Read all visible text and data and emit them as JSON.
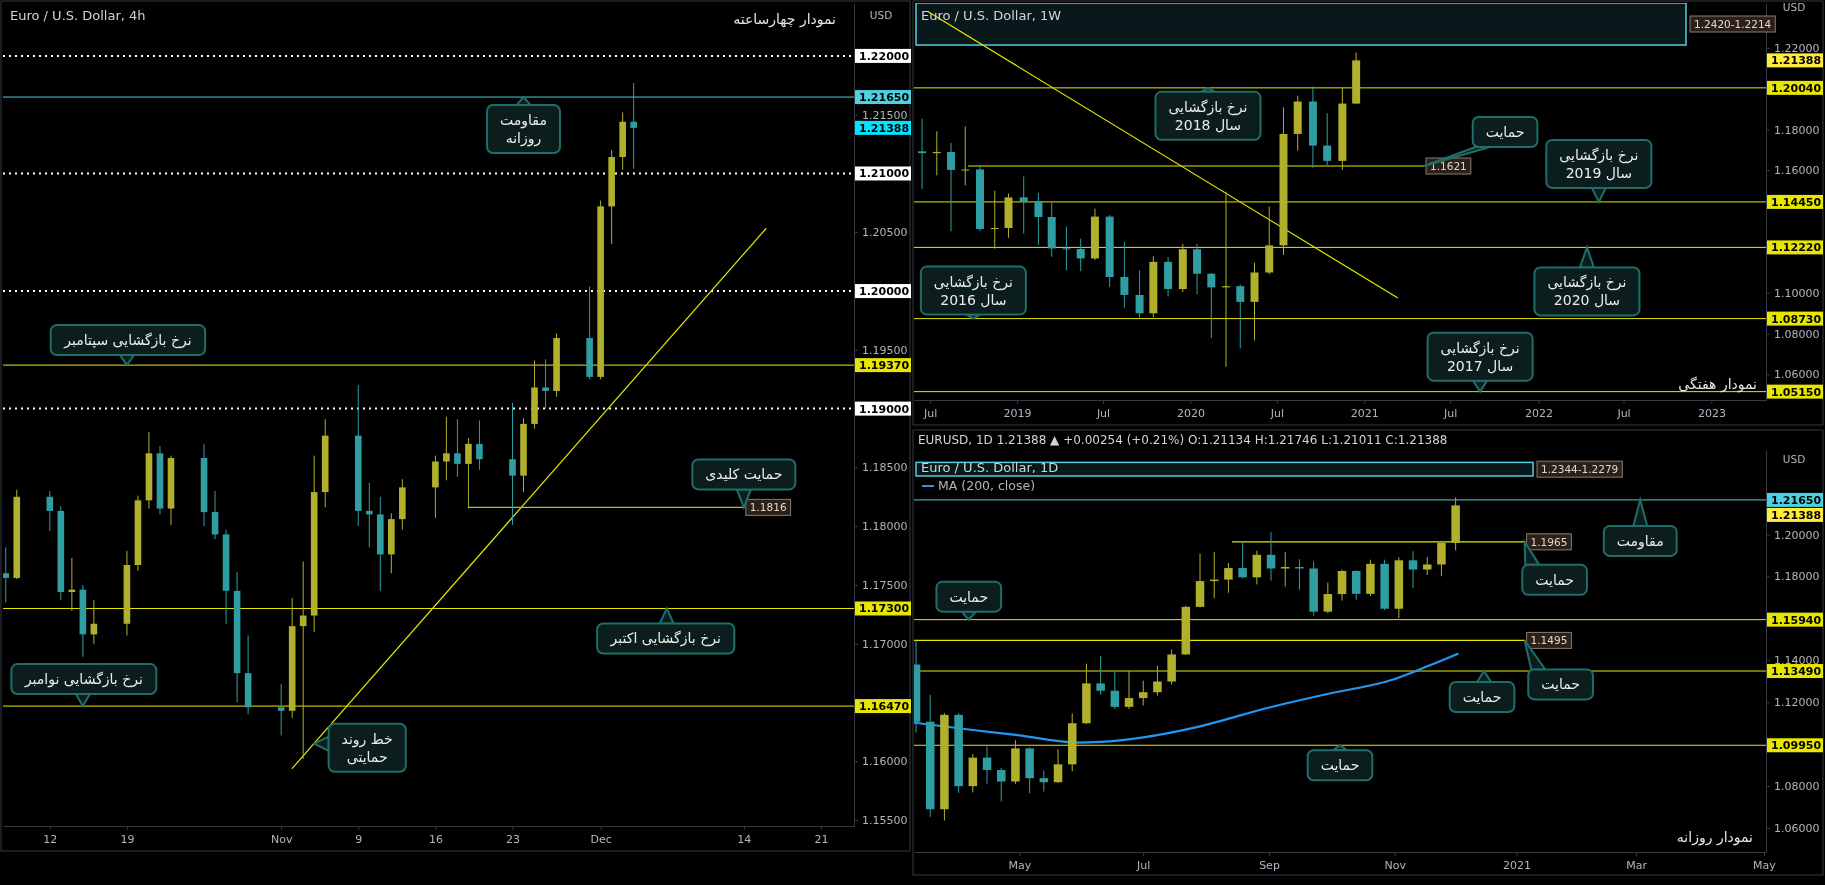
{
  "chart_data": [
    {
      "type": "candlestick",
      "title": "Euro / U.S. Dollar, 4h",
      "subtitle": "نمودار چهارساعته",
      "ylabel": "USD",
      "xlim": [
        "2020-10-07T18:00",
        "2020-12-24"
      ],
      "ylim": [
        1.1545,
        1.2245
      ],
      "xticks": [
        {
          "value": "2020-10-12",
          "label": "12"
        },
        {
          "value": "2020-10-19",
          "label": "19"
        },
        {
          "value": "2020-11-02",
          "label": "Nov"
        },
        {
          "value": "2020-11-09",
          "label": "9"
        },
        {
          "value": "2020-11-16",
          "label": "16"
        },
        {
          "value": "2020-11-23",
          "label": "23"
        },
        {
          "value": "2020-12-01",
          "label": "Dec"
        },
        {
          "value": "2020-12-14",
          "label": "14"
        },
        {
          "value": "2020-12-21",
          "label": "21"
        }
      ],
      "yticks": [
        {
          "value": 1.155,
          "label": "1.15500"
        },
        {
          "value": 1.16,
          "label": "1.16000"
        },
        {
          "value": 1.17,
          "label": "1.17000"
        },
        {
          "value": 1.175,
          "label": "1.17500"
        },
        {
          "value": 1.18,
          "label": "1.18000"
        },
        {
          "value": 1.185,
          "label": "1.18500"
        },
        {
          "value": 1.195,
          "label": "1.19500"
        },
        {
          "value": 1.205,
          "label": "1.20500"
        },
        {
          "value": 1.215,
          "label": "1.21500"
        }
      ],
      "x": [
        "2020-10-08",
        "2020-10-09",
        "2020-10-12",
        "2020-10-13",
        "2020-10-14",
        "2020-10-15",
        "2020-10-16",
        "2020-10-19",
        "2020-10-20",
        "2020-10-21",
        "2020-10-22",
        "2020-10-23",
        "2020-10-26",
        "2020-10-27",
        "2020-10-28",
        "2020-10-29",
        "2020-10-30",
        "2020-11-02",
        "2020-11-03",
        "2020-11-04",
        "2020-11-05",
        "2020-11-06",
        "2020-11-09",
        "2020-11-10",
        "2020-11-11",
        "2020-11-12",
        "2020-11-13",
        "2020-11-16",
        "2020-11-17",
        "2020-11-18",
        "2020-11-19",
        "2020-11-20",
        "2020-11-23",
        "2020-11-24",
        "2020-11-25",
        "2020-11-26",
        "2020-11-27",
        "2020-11-30",
        "2020-12-01",
        "2020-12-02",
        "2020-12-03",
        "2020-12-04"
      ],
      "ohlc": [
        [
          1.176,
          1.1782,
          1.1735,
          1.1756
        ],
        [
          1.1756,
          1.1831,
          1.1755,
          1.1825
        ],
        [
          1.1825,
          1.183,
          1.1796,
          1.1813
        ],
        [
          1.1813,
          1.1817,
          1.1737,
          1.1744
        ],
        [
          1.1744,
          1.1773,
          1.1728,
          1.1746
        ],
        [
          1.1746,
          1.175,
          1.1689,
          1.1708
        ],
        [
          1.1708,
          1.1737,
          1.17,
          1.1717
        ],
        [
          1.1717,
          1.1779,
          1.1707,
          1.1767
        ],
        [
          1.1767,
          1.1826,
          1.1762,
          1.1822
        ],
        [
          1.1822,
          1.188,
          1.1815,
          1.1862
        ],
        [
          1.1862,
          1.1868,
          1.181,
          1.1815
        ],
        [
          1.1815,
          1.186,
          1.1801,
          1.1858
        ],
        [
          1.1858,
          1.187,
          1.18,
          1.1812
        ],
        [
          1.1812,
          1.183,
          1.1789,
          1.1793
        ],
        [
          1.1793,
          1.1797,
          1.1717,
          1.1745
        ],
        [
          1.1745,
          1.1761,
          1.165,
          1.1675
        ],
        [
          1.1675,
          1.1707,
          1.164,
          1.1646
        ],
        [
          1.1646,
          1.1666,
          1.1622,
          1.1643
        ],
        [
          1.1643,
          1.1739,
          1.1637,
          1.1715
        ],
        [
          1.1715,
          1.177,
          1.1602,
          1.1724
        ],
        [
          1.1724,
          1.186,
          1.171,
          1.1829
        ],
        [
          1.1829,
          1.1891,
          1.1816,
          1.1877
        ],
        [
          1.1877,
          1.192,
          1.18,
          1.1813
        ],
        [
          1.1813,
          1.1837,
          1.1782,
          1.181
        ],
        [
          1.181,
          1.1825,
          1.1745,
          1.1776
        ],
        [
          1.1776,
          1.1811,
          1.176,
          1.1806
        ],
        [
          1.1806,
          1.184,
          1.1797,
          1.1833
        ],
        [
          1.1833,
          1.186,
          1.1807,
          1.1855
        ],
        [
          1.1855,
          1.1893,
          1.1839,
          1.1862
        ],
        [
          1.1862,
          1.1891,
          1.1842,
          1.1853
        ],
        [
          1.1853,
          1.1875,
          1.1815,
          1.187
        ],
        [
          1.187,
          1.189,
          1.1848,
          1.1857
        ],
        [
          1.1857,
          1.1905,
          1.1801,
          1.1843
        ],
        [
          1.1843,
          1.1892,
          1.1829,
          1.1887
        ],
        [
          1.1887,
          1.1941,
          1.1883,
          1.1918
        ],
        [
          1.1918,
          1.1942,
          1.19,
          1.1915
        ],
        [
          1.1915,
          1.1964,
          1.191,
          1.196
        ],
        [
          1.196,
          1.2004,
          1.1925,
          1.1927
        ],
        [
          1.1927,
          1.2077,
          1.1925,
          1.2072
        ],
        [
          1.2072,
          1.212,
          1.204,
          1.2114
        ],
        [
          1.2114,
          1.2152,
          1.2103,
          1.2144
        ],
        [
          1.2144,
          1.2177,
          1.2104,
          1.21388
        ]
      ],
      "colors": [
        "#2f9ea2",
        "#b0b02c",
        "#2f9ea2",
        "#2f9ea2",
        "#b0b02c",
        "#2f9ea2",
        "#b0b02c",
        "#b0b02c",
        "#b0b02c",
        "#b0b02c",
        "#2f9ea2",
        "#b0b02c",
        "#2f9ea2",
        "#2f9ea2",
        "#2f9ea2",
        "#2f9ea2",
        "#2f9ea2",
        "#2f9ea2",
        "#b0b02c",
        "#b0b02c",
        "#b0b02c",
        "#b0b02c",
        "#2f9ea2",
        "#2f9ea2",
        "#2f9ea2",
        "#b0b02c",
        "#b0b02c",
        "#b0b02c",
        "#b0b02c",
        "#2f9ea2",
        "#b0b02c",
        "#2f9ea2",
        "#2f9ea2",
        "#b0b02c",
        "#b0b02c",
        "#2f9ea2",
        "#b0b02c",
        "#2f9ea2",
        "#b0b02c",
        "#b0b02c",
        "#b0b02c",
        "#2f9ea2"
      ],
      "series": [
        {
          "type": "line",
          "x": [
            "2020-11-03",
            "2020-12-16"
          ],
          "values": [
            1.1594,
            1.2053
          ],
          "color": "#e6e600"
        },
        {
          "type": "line",
          "x": [
            "2020-11-19",
            "2020-12-14"
          ],
          "values": [
            1.1816,
            1.1816
          ],
          "color": "#b8b84a",
          "value_labels": [
            null,
            "1.1816"
          ]
        }
      ],
      "ref_lines": [
        {
          "axis": "y",
          "value": 1.22,
          "label": "1.22000",
          "color": "#ffffff",
          "line_style": "dotted"
        },
        {
          "axis": "y",
          "value": 1.2165,
          "label": "1.21650",
          "color": "#4dd0e1"
        },
        {
          "axis": "y",
          "value": 1.21,
          "label": "1.21000",
          "color": "#ffffff",
          "line_style": "dotted"
        },
        {
          "axis": "y",
          "value": 1.2,
          "label": "1.20000",
          "color": "#ffffff",
          "line_style": "dotted"
        },
        {
          "axis": "y",
          "value": 1.1937,
          "label": "1.19370",
          "color": "#e6e600"
        },
        {
          "axis": "y",
          "value": 1.19,
          "label": "1.19000",
          "color": "#ffffff",
          "line_style": "dotted"
        },
        {
          "axis": "y",
          "value": 1.173,
          "label": "1.17300",
          "color": "#e6e600"
        },
        {
          "axis": "y",
          "value": 1.1647,
          "label": "1.16470",
          "color": "#e6e600"
        }
      ],
      "annotations": [
        "1.21388",
        {
          "text": "مقاومت\nروزانه",
          "x": "2020-11-24",
          "y": 1.2165
        },
        {
          "text": "نرخ بازگشایی سپتامبر",
          "x": "2020-10-19",
          "y": 1.1937
        },
        {
          "text": "حمایت کلیدی",
          "x": "2020-12-14",
          "y": 1.1816
        },
        {
          "text": "نرخ بازگشایی اکتبر",
          "x": "2020-12-07",
          "y": 1.173
        },
        {
          "text": "نرخ بازگشایی نوامبر",
          "x": "2020-10-15",
          "y": 1.1647
        },
        {
          "text": "خط روند\nحمایتی",
          "x": "2020-11-05",
          "y": 1.1615
        }
      ]
    },
    {
      "type": "candlestick",
      "title": "Euro / U.S. Dollar, 1W",
      "subtitle": "نمودار هفتگی",
      "ylabel": "USD",
      "xlim": [
        "2018-05-29",
        "2023-04-27"
      ],
      "ylim": [
        1.0474,
        1.242
      ],
      "xticks": [
        {
          "value": "2018-07-02",
          "label": "Jul"
        },
        {
          "value": "2019-01-01",
          "label": "2019"
        },
        {
          "value": "2019-07-01",
          "label": "Jul"
        },
        {
          "value": "2020-01-01",
          "label": "2020"
        },
        {
          "value": "2020-07-01",
          "label": "Jul"
        },
        {
          "value": "2021-01-01",
          "label": "2021"
        },
        {
          "value": "2021-07-01",
          "label": "Jul"
        },
        {
          "value": "2022-01-03",
          "label": "2022"
        },
        {
          "value": "2022-07-01",
          "label": "Jul"
        },
        {
          "value": "2023-01-02",
          "label": "2023"
        }
      ],
      "yticks": [
        {
          "value": 1.06,
          "label": "1.06000"
        },
        {
          "value": 1.08,
          "label": "1.08000"
        },
        {
          "value": 1.1,
          "label": "1.10000"
        },
        {
          "value": 1.16,
          "label": "1.16000"
        },
        {
          "value": 1.18,
          "label": "1.18000"
        },
        {
          "value": 1.22,
          "label": "1.22000"
        }
      ],
      "x": [
        "2018-06-15",
        "2018-07-16",
        "2018-08-15",
        "2018-09-14",
        "2018-10-15",
        "2018-11-15",
        "2018-12-14",
        "2019-01-15",
        "2019-02-15",
        "2019-03-15",
        "2019-04-15",
        "2019-05-15",
        "2019-06-14",
        "2019-07-15",
        "2019-08-15",
        "2019-09-16",
        "2019-10-15",
        "2019-11-15",
        "2019-12-16",
        "2020-01-15",
        "2020-02-14",
        "2020-03-16",
        "2020-04-15",
        "2020-05-15",
        "2020-06-15",
        "2020-07-15",
        "2020-08-14",
        "2020-09-15",
        "2020-10-15",
        "2020-11-16",
        "2020-12-15"
      ],
      "ohlc": [
        [
          1.1693,
          1.1853,
          1.1509,
          1.1684
        ],
        [
          1.1684,
          1.1791,
          1.1575,
          1.169
        ],
        [
          1.169,
          1.1734,
          1.1301,
          1.1602
        ],
        [
          1.1602,
          1.1815,
          1.1526,
          1.1604
        ],
        [
          1.1604,
          1.1625,
          1.1302,
          1.1312
        ],
        [
          1.1312,
          1.15,
          1.1216,
          1.1317
        ],
        [
          1.1317,
          1.1486,
          1.1269,
          1.1467
        ],
        [
          1.1467,
          1.157,
          1.1289,
          1.1448
        ],
        [
          1.1448,
          1.1489,
          1.1234,
          1.1371
        ],
        [
          1.1371,
          1.1448,
          1.1176,
          1.1217
        ],
        [
          1.1217,
          1.1324,
          1.111,
          1.1214
        ],
        [
          1.1214,
          1.1265,
          1.1105,
          1.1168
        ],
        [
          1.1168,
          1.1412,
          1.116,
          1.1373
        ],
        [
          1.1373,
          1.138,
          1.1028,
          1.1077
        ],
        [
          1.1077,
          1.1249,
          1.0926,
          1.0989
        ],
        [
          1.0989,
          1.1109,
          1.0879,
          1.0899
        ],
        [
          1.0899,
          1.1179,
          1.0879,
          1.1151
        ],
        [
          1.1151,
          1.1175,
          1.0981,
          1.1018
        ],
        [
          1.1018,
          1.1239,
          1.1003,
          1.1213
        ],
        [
          1.1213,
          1.1239,
          1.0992,
          1.1093
        ],
        [
          1.1093,
          1.1096,
          1.0778,
          1.1026
        ],
        [
          1.1026,
          1.1495,
          1.0636,
          1.1032
        ],
        [
          1.1032,
          1.104,
          1.0727,
          1.0955
        ],
        [
          1.0955,
          1.1147,
          1.0766,
          1.1099
        ],
        [
          1.1099,
          1.1422,
          1.1091,
          1.1232
        ],
        [
          1.1232,
          1.1909,
          1.1185,
          1.1778
        ],
        [
          1.1778,
          1.1966,
          1.1696,
          1.1937
        ],
        [
          1.1937,
          1.2011,
          1.1612,
          1.1721
        ],
        [
          1.1721,
          1.188,
          1.1622,
          1.1646
        ],
        [
          1.1646,
          1.2004,
          1.1602,
          1.1927
        ],
        [
          1.1927,
          1.2177,
          1.1925,
          1.21388
        ]
      ],
      "colors": [
        "#2f9ea2",
        "#b0b02c",
        "#2f9ea2",
        "#b0b02c",
        "#2f9ea2",
        "#b0b02c",
        "#b0b02c",
        "#2f9ea2",
        "#2f9ea2",
        "#2f9ea2",
        "#2f9ea2",
        "#2f9ea2",
        "#b0b02c",
        "#2f9ea2",
        "#2f9ea2",
        "#2f9ea2",
        "#b0b02c",
        "#2f9ea2",
        "#b0b02c",
        "#2f9ea2",
        "#2f9ea2",
        "#b0b02c",
        "#2f9ea2",
        "#b0b02c",
        "#b0b02c",
        "#b0b02c",
        "#b0b02c",
        "#2f9ea2",
        "#2f9ea2",
        "#b0b02c",
        "#b0b02c"
      ],
      "series": [
        {
          "type": "line",
          "x": [
            "2018-06-27",
            "2021-03-12"
          ],
          "values": [
            1.2378,
            1.0975
          ],
          "color": "#e6e600"
        },
        {
          "type": "line",
          "x": [
            "2018-09-21",
            "2021-05-07"
          ],
          "values": [
            1.1621,
            1.1621
          ],
          "color": "#e6e600",
          "value_labels": [
            null,
            "1.1621"
          ]
        }
      ],
      "bands": [
        {
          "axis": "y",
          "from": 1.2214,
          "to": 1.242,
          "label": "1.2420-1.2214",
          "color": "#4dd0e1"
        }
      ],
      "ref_lines": [
        {
          "axis": "y",
          "value": 1.2004,
          "label": "1.20040",
          "color": "#e6e600"
        },
        {
          "axis": "y",
          "value": 1.1445,
          "label": "1.14450",
          "color": "#e6e600"
        },
        {
          "axis": "y",
          "value": 1.1222,
          "label": "1.12220",
          "color": "#e6e600"
        },
        {
          "axis": "y",
          "value": 1.0873,
          "label": "1.08730",
          "color": "#e6e600"
        },
        {
          "axis": "y",
          "value": 1.0515,
          "label": "1.05150",
          "color": "#e6e600"
        }
      ],
      "annotations": [
        "1.21388",
        {
          "text": "نرخ بازگشایی\nسال 2018",
          "x": "2020-02-07",
          "y": 1.2004
        },
        {
          "text": "حمایت",
          "x": "2021-05-07",
          "y": 1.1621
        },
        {
          "text": "نرخ بازگشایی\nسال 2019",
          "x": "2022-05-10",
          "y": 1.1445
        },
        {
          "text": "نرخ بازگشایی\nسال 2020",
          "x": "2022-04-15",
          "y": 1.1222
        },
        {
          "text": "نرخ بازگشایی\nسال 2016",
          "x": "2018-10-01",
          "y": 1.0873
        },
        {
          "text": "نرخ بازگشایی\nسال 2017",
          "x": "2021-09-02",
          "y": 1.0515
        }
      ]
    },
    {
      "type": "candlestick",
      "title": "Euro / U.S. Dollar, 1D",
      "subtitle": "نمودار روزانه",
      "ylabel": "USD",
      "legend": "top left",
      "xlim": [
        "2020-03-10",
        "2021-05-04"
      ],
      "ylim": [
        1.0486,
        1.2403
      ],
      "xticks": [
        {
          "value": "2020-05-01",
          "label": "May"
        },
        {
          "value": "2020-07-01",
          "label": "Jul"
        },
        {
          "value": "2020-09-01",
          "label": "Sep"
        },
        {
          "value": "2020-11-02",
          "label": "Nov"
        },
        {
          "value": "2021-01-01",
          "label": "2021"
        },
        {
          "value": "2021-03-01",
          "label": "Mar"
        },
        {
          "value": "2021-05-03",
          "label": "May"
        }
      ],
      "yticks": [
        {
          "value": 1.06,
          "label": "1.06000"
        },
        {
          "value": 1.08,
          "label": "1.08000"
        },
        {
          "value": 1.12,
          "label": "1.12000"
        },
        {
          "value": 1.14,
          "label": "1.14000"
        },
        {
          "value": 1.18,
          "label": "1.18000"
        },
        {
          "value": 1.2,
          "label": "1.20000"
        }
      ],
      "x": [
        "2020-03-11",
        "2020-03-18",
        "2020-03-25",
        "2020-04-01",
        "2020-04-08",
        "2020-04-15",
        "2020-04-22",
        "2020-04-29",
        "2020-05-06",
        "2020-05-13",
        "2020-05-20",
        "2020-05-27",
        "2020-06-03",
        "2020-06-10",
        "2020-06-17",
        "2020-06-24",
        "2020-07-01",
        "2020-07-08",
        "2020-07-15",
        "2020-07-22",
        "2020-07-29",
        "2020-08-05",
        "2020-08-12",
        "2020-08-19",
        "2020-08-26",
        "2020-09-02",
        "2020-09-09",
        "2020-09-16",
        "2020-09-23",
        "2020-09-30",
        "2020-10-07",
        "2020-10-14",
        "2020-10-21",
        "2020-10-28",
        "2020-11-04",
        "2020-11-11",
        "2020-11-18",
        "2020-11-25",
        "2020-12-02"
      ],
      "ohlc": [
        [
          1.138,
          1.1495,
          1.1055,
          1.1107
        ],
        [
          1.1107,
          1.1236,
          1.0654,
          1.069
        ],
        [
          1.069,
          1.1148,
          1.0636,
          1.114
        ],
        [
          1.114,
          1.1148,
          1.0768,
          1.08
        ],
        [
          1.08,
          1.0953,
          1.077,
          1.0936
        ],
        [
          1.0936,
          1.099,
          1.0812,
          1.0877
        ],
        [
          1.0877,
          1.0887,
          1.0727,
          1.0822
        ],
        [
          1.0822,
          1.1019,
          1.0811,
          1.098
        ],
        [
          1.098,
          1.0985,
          1.0766,
          1.0838
        ],
        [
          1.0838,
          1.0874,
          1.0774,
          1.0819
        ],
        [
          1.0819,
          1.0976,
          1.0816,
          1.0904
        ],
        [
          1.0904,
          1.1147,
          1.0871,
          1.11
        ],
        [
          1.11,
          1.1384,
          1.1096,
          1.129
        ],
        [
          1.129,
          1.1422,
          1.1236,
          1.1255
        ],
        [
          1.1255,
          1.1348,
          1.1168,
          1.1178
        ],
        [
          1.1178,
          1.1349,
          1.1168,
          1.122
        ],
        [
          1.122,
          1.1303,
          1.1185,
          1.1248
        ],
        [
          1.1248,
          1.1375,
          1.1232,
          1.1299
        ],
        [
          1.1299,
          1.1452,
          1.1284,
          1.1428
        ],
        [
          1.1428,
          1.166,
          1.1426,
          1.1655
        ],
        [
          1.1655,
          1.1909,
          1.1652,
          1.1778
        ],
        [
          1.1778,
          1.1916,
          1.1696,
          1.1785
        ],
        [
          1.1785,
          1.1864,
          1.1722,
          1.184
        ],
        [
          1.184,
          1.1966,
          1.179,
          1.1796
        ],
        [
          1.1796,
          1.1923,
          1.1762,
          1.1903
        ],
        [
          1.1903,
          1.2011,
          1.178,
          1.1838
        ],
        [
          1.1838,
          1.1917,
          1.1752,
          1.1845
        ],
        [
          1.1845,
          1.1882,
          1.1737,
          1.1838
        ],
        [
          1.1838,
          1.1872,
          1.1612,
          1.1632
        ],
        [
          1.1632,
          1.1771,
          1.1625,
          1.1716
        ],
        [
          1.1716,
          1.1833,
          1.1685,
          1.1826
        ],
        [
          1.1826,
          1.183,
          1.1689,
          1.1717
        ],
        [
          1.1717,
          1.188,
          1.1707,
          1.186
        ],
        [
          1.186,
          1.188,
          1.164,
          1.1646
        ],
        [
          1.1646,
          1.1891,
          1.1602,
          1.1877
        ],
        [
          1.1877,
          1.192,
          1.1745,
          1.1833
        ],
        [
          1.1833,
          1.1893,
          1.1807,
          1.1857
        ],
        [
          1.1857,
          1.1964,
          1.1801,
          1.196
        ],
        [
          1.196,
          1.2177,
          1.1925,
          1.21388
        ]
      ],
      "colors": [
        "#2f9ea2",
        "#2f9ea2",
        "#b0b02c",
        "#2f9ea2",
        "#b0b02c",
        "#2f9ea2",
        "#2f9ea2",
        "#b0b02c",
        "#2f9ea2",
        "#2f9ea2",
        "#b0b02c",
        "#b0b02c",
        "#b0b02c",
        "#2f9ea2",
        "#2f9ea2",
        "#b0b02c",
        "#b0b02c",
        "#b0b02c",
        "#b0b02c",
        "#b0b02c",
        "#b0b02c",
        "#b0b02c",
        "#b0b02c",
        "#2f9ea2",
        "#b0b02c",
        "#2f9ea2",
        "#b0b02c",
        "#2f9ea2",
        "#2f9ea2",
        "#b0b02c",
        "#b0b02c",
        "#2f9ea2",
        "#b0b02c",
        "#2f9ea2",
        "#b0b02c",
        "#2f9ea2",
        "#b0b02c",
        "#b0b02c",
        "#b0b02c"
      ],
      "series": [
        {
          "type": "line",
          "name": "MA (200, close)",
          "x": [
            "2020-03-10",
            "2020-04-07",
            "2020-05-01",
            "2020-05-29",
            "2020-06-10",
            "2020-07-01",
            "2020-07-28",
            "2020-09-01",
            "2020-09-28",
            "2020-11-02",
            "2020-11-19",
            "2020-12-03"
          ],
          "values": [
            1.1103,
            1.1069,
            1.1042,
            1.1008,
            1.1011,
            1.1033,
            1.1083,
            1.1175,
            1.1236,
            1.1311,
            1.1375,
            1.1431
          ],
          "color": "#2196f3"
        },
        {
          "type": "line",
          "x": [
            "2020-08-14",
            "2021-01-05"
          ],
          "values": [
            1.1965,
            1.1965
          ],
          "color": "#e6e600",
          "value_labels": [
            null,
            "1.1965"
          ]
        },
        {
          "type": "line",
          "x": [
            "2020-03-10",
            "2021-01-05"
          ],
          "values": [
            1.1495,
            1.1495
          ],
          "color": "#e6e600",
          "value_labels": [
            null,
            "1.1495"
          ]
        }
      ],
      "bands": [
        {
          "axis": "y",
          "from": 1.2279,
          "to": 1.2344,
          "label": "1.2344-1.2279",
          "color": "#4dd0e1"
        }
      ],
      "ref_lines": [
        {
          "axis": "y",
          "value": 1.2165,
          "label": "1.21650",
          "color": "#4dd0e1"
        },
        {
          "axis": "y",
          "value": 1.1594,
          "label": "1.15940",
          "color": "#e6e600"
        },
        {
          "axis": "y",
          "value": 1.1349,
          "label": "1.13490",
          "color": "#e6e600"
        },
        {
          "axis": "y",
          "value": 1.0995,
          "label": "1.09950",
          "color": "#e6e600"
        }
      ],
      "annotations": [
        "EURUSD, 1D 1.21388 ▲ +0.00254 (+0.21%) O:1.21134 H:1.21746 L:1.21011 C:1.21388",
        "1.21388",
        {
          "text": "مقاومت",
          "x": "2021-03-03",
          "y": 1.2165
        },
        {
          "text": "حمایت",
          "x": "2021-01-05",
          "y": 1.1965
        },
        {
          "text": "حمایت",
          "x": "2020-04-06",
          "y": 1.1594
        },
        {
          "text": "حمایت",
          "x": "2021-01-05",
          "y": 1.1495
        },
        {
          "text": "حمایت",
          "x": "2020-12-16",
          "y": 1.1349
        },
        {
          "text": "حمایت",
          "x": "2020-10-06",
          "y": 1.0995
        }
      ]
    }
  ]
}
